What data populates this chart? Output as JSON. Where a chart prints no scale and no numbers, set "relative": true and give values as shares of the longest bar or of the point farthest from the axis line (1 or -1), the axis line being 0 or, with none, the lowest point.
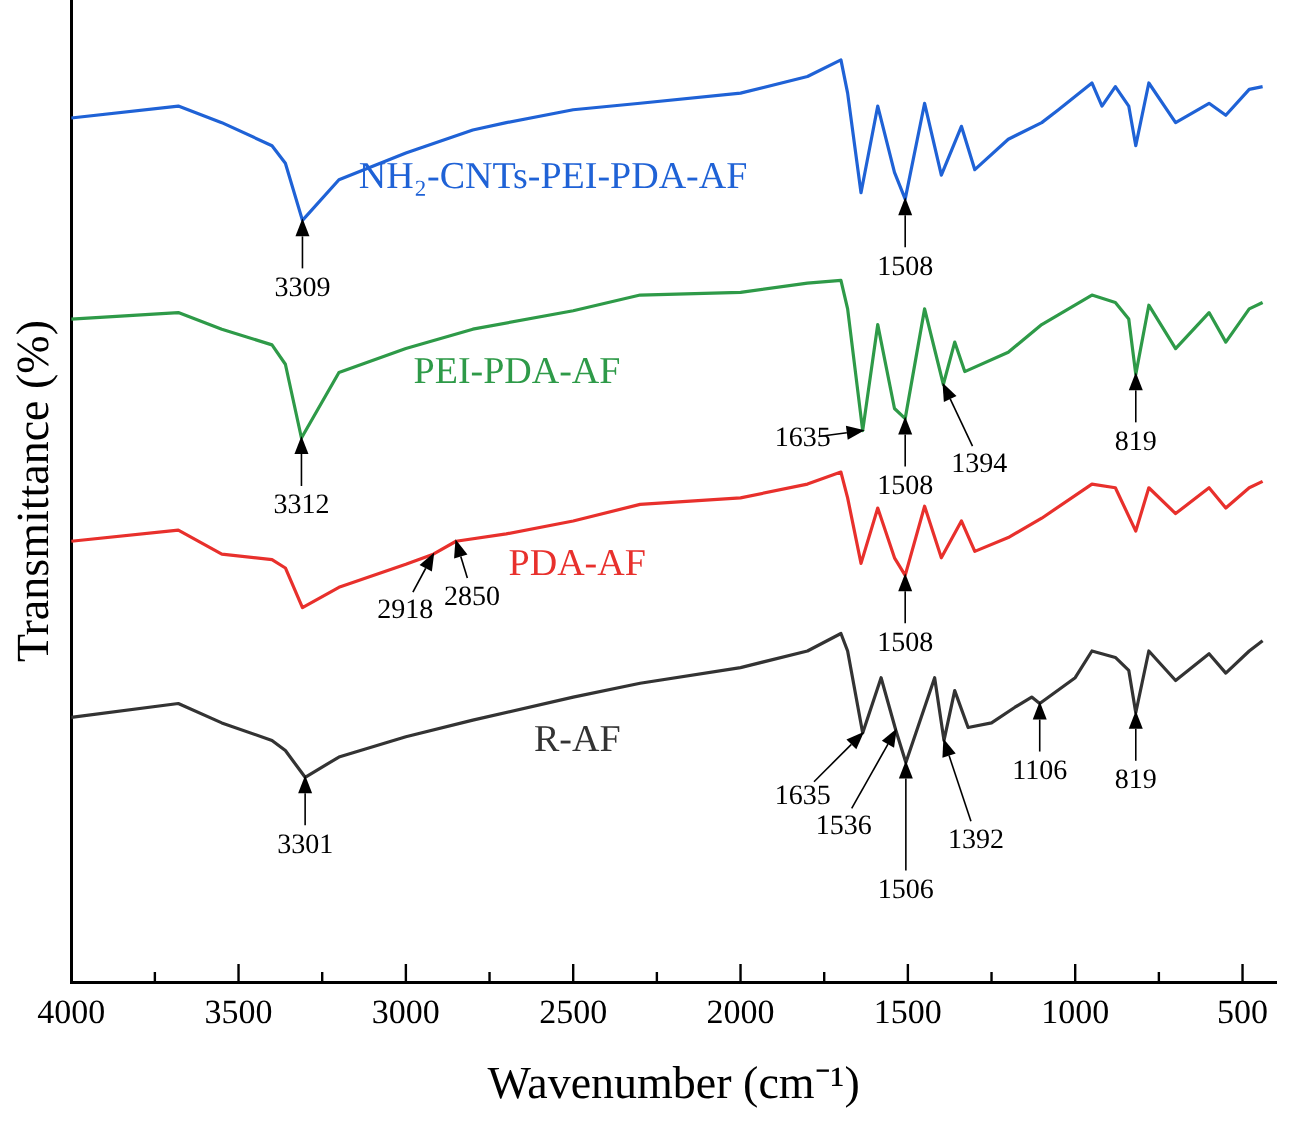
{
  "chart_data": {
    "type": "line",
    "xlabel": "Wavenumber (cm⁻¹)",
    "ylabel": "Transmittance (%)",
    "relative": true,
    "xlim": [
      4000,
      400
    ],
    "xticks": [
      4000,
      {
        "value": 3750,
        "label": null
      },
      3500,
      {
        "value": 3250,
        "label": null
      },
      3000,
      {
        "value": 2750,
        "label": null
      },
      2500,
      {
        "value": 2250,
        "label": null
      },
      2000,
      {
        "value": 1750,
        "label": null
      },
      1500,
      {
        "value": 1250,
        "label": null
      },
      1000,
      {
        "value": 750,
        "label": null
      },
      500
    ],
    "grid": false,
    "legend": false,
    "marker": "none",
    "series": [
      {
        "name": "NH₂-CNTs-PEI-PDA-AF",
        "color": "#1f62d6",
        "x": [
          4000,
          3680,
          3550,
          3400,
          3360,
          3309,
          3200,
          3000,
          2800,
          2700,
          2500,
          2300,
          2000,
          1800,
          1700,
          1680,
          1640,
          1590,
          1540,
          1508,
          1450,
          1400,
          1340,
          1300,
          1200,
          1100,
          1050,
          950,
          920,
          880,
          840,
          819,
          780,
          700,
          600,
          550,
          480,
          440
        ],
        "values": [
          0.937,
          0.95,
          0.932,
          0.907,
          0.888,
          0.826,
          0.87,
          0.899,
          0.924,
          0.932,
          0.946,
          0.953,
          0.964,
          0.982,
          1.0,
          0.964,
          0.856,
          0.95,
          0.878,
          0.849,
          0.953,
          0.875,
          0.928,
          0.881,
          0.914,
          0.932,
          0.946,
          0.975,
          0.95,
          0.971,
          0.95,
          0.907,
          0.975,
          0.932,
          0.953,
          0.94,
          0.968,
          0.971
        ]
      },
      {
        "name": "PEI-PDA-AF",
        "color": "#2e9a48",
        "x": [
          4000,
          3680,
          3550,
          3400,
          3360,
          3312,
          3200,
          3000,
          2800,
          2500,
          2300,
          2000,
          1800,
          1700,
          1680,
          1635,
          1590,
          1540,
          1508,
          1450,
          1394,
          1360,
          1330,
          1200,
          1100,
          950,
          880,
          840,
          819,
          780,
          700,
          600,
          550,
          480,
          440
        ],
        "values": [
          0.719,
          0.726,
          0.708,
          0.691,
          0.67,
          0.59,
          0.661,
          0.687,
          0.708,
          0.728,
          0.745,
          0.748,
          0.758,
          0.761,
          0.73,
          0.598,
          0.713,
          0.622,
          0.611,
          0.73,
          0.648,
          0.694,
          0.662,
          0.683,
          0.713,
          0.745,
          0.737,
          0.719,
          0.659,
          0.734,
          0.687,
          0.726,
          0.694,
          0.73,
          0.737
        ]
      },
      {
        "name": "PDA-AF",
        "color": "#e8302c",
        "x": [
          4000,
          3680,
          3550,
          3400,
          3360,
          3309,
          3200,
          3000,
          2918,
          2850,
          2700,
          2500,
          2300,
          2000,
          1800,
          1700,
          1680,
          1640,
          1590,
          1540,
          1508,
          1450,
          1400,
          1340,
          1300,
          1200,
          1100,
          950,
          880,
          819,
          780,
          700,
          600,
          550,
          480,
          440
        ],
        "values": [
          0.478,
          0.49,
          0.464,
          0.458,
          0.449,
          0.406,
          0.428,
          0.453,
          0.464,
          0.478,
          0.486,
          0.5,
          0.518,
          0.525,
          0.54,
          0.553,
          0.525,
          0.454,
          0.514,
          0.46,
          0.441,
          0.516,
          0.46,
          0.5,
          0.467,
          0.482,
          0.503,
          0.54,
          0.536,
          0.489,
          0.536,
          0.508,
          0.536,
          0.514,
          0.536,
          0.543
        ]
      },
      {
        "name": "R-AF",
        "color": "#333333",
        "x": [
          4000,
          3680,
          3550,
          3400,
          3360,
          3301,
          3200,
          3000,
          2800,
          2500,
          2300,
          2000,
          1800,
          1700,
          1680,
          1635,
          1580,
          1536,
          1506,
          1420,
          1392,
          1360,
          1320,
          1250,
          1180,
          1130,
          1106,
          1000,
          950,
          880,
          840,
          819,
          780,
          700,
          600,
          550,
          480,
          440
        ],
        "values": [
          0.287,
          0.302,
          0.281,
          0.262,
          0.251,
          0.222,
          0.244,
          0.266,
          0.284,
          0.309,
          0.324,
          0.341,
          0.359,
          0.378,
          0.359,
          0.27,
          0.33,
          0.273,
          0.238,
          0.33,
          0.262,
          0.316,
          0.276,
          0.281,
          0.298,
          0.309,
          0.302,
          0.33,
          0.359,
          0.352,
          0.338,
          0.292,
          0.359,
          0.327,
          0.356,
          0.335,
          0.359,
          0.37
        ]
      }
    ],
    "annotations": [
      {
        "text": "3309",
        "x": 3309,
        "y": 0.826
      },
      {
        "text": "1508",
        "x": 1508,
        "y": 0.849
      },
      {
        "text": "3312",
        "x": 3312,
        "y": 0.59
      },
      {
        "text": "1635",
        "x": 1635,
        "y": 0.598
      },
      {
        "text": "1508",
        "x": 1508,
        "y": 0.611
      },
      {
        "text": "1394",
        "x": 1394,
        "y": 0.648
      },
      {
        "text": "819",
        "x": 819,
        "y": 0.659
      },
      {
        "text": "2918",
        "x": 2918,
        "y": 0.464
      },
      {
        "text": "2850",
        "x": 2850,
        "y": 0.478
      },
      {
        "text": "1508",
        "x": 1508,
        "y": 0.441
      },
      {
        "text": "3301",
        "x": 3301,
        "y": 0.222
      },
      {
        "text": "1635",
        "x": 1635,
        "y": 0.27
      },
      {
        "text": "1536",
        "x": 1536,
        "y": 0.273
      },
      {
        "text": "1506",
        "x": 1506,
        "y": 0.238
      },
      {
        "text": "1392",
        "x": 1392,
        "y": 0.262
      },
      {
        "text": "1106",
        "x": 1106,
        "y": 0.302
      },
      {
        "text": "819",
        "x": 819,
        "y": 0.292
      }
    ]
  }
}
